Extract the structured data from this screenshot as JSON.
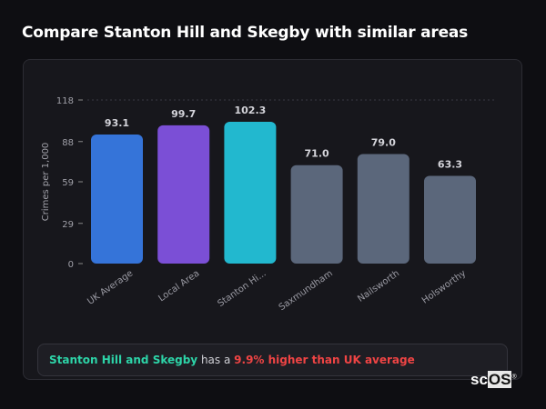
{
  "title": "Compare Stanton Hill and Skegby with similar areas",
  "chart_data": {
    "type": "bar",
    "title": "",
    "xlabel": "",
    "ylabel": "Crimes per 1,000",
    "ylim": [
      0,
      118
    ],
    "yticks": [
      0,
      29,
      59,
      88,
      118
    ],
    "categories": [
      "UK Average",
      "Local Area",
      "Stanton Hi...",
      "Saxmundham",
      "Nailsworth",
      "Holsworthy"
    ],
    "values": [
      93.1,
      99.7,
      102.3,
      71.0,
      79.0,
      63.3
    ],
    "value_labels": [
      "93.1",
      "99.7",
      "102.3",
      "71.0",
      "79.0",
      "63.3"
    ],
    "colors": [
      "#3574d9",
      "#7b4fd6",
      "#22b8cf",
      "#5b677b",
      "#5b677b",
      "#5b677b"
    ],
    "grid": false
  },
  "summary": {
    "area": "Stanton Hill and Skegby",
    "middle": " has a ",
    "diff": "9.9% higher than UK average"
  },
  "logo": {
    "text_a": "sc",
    "text_b": "OS",
    "mark": "®"
  }
}
